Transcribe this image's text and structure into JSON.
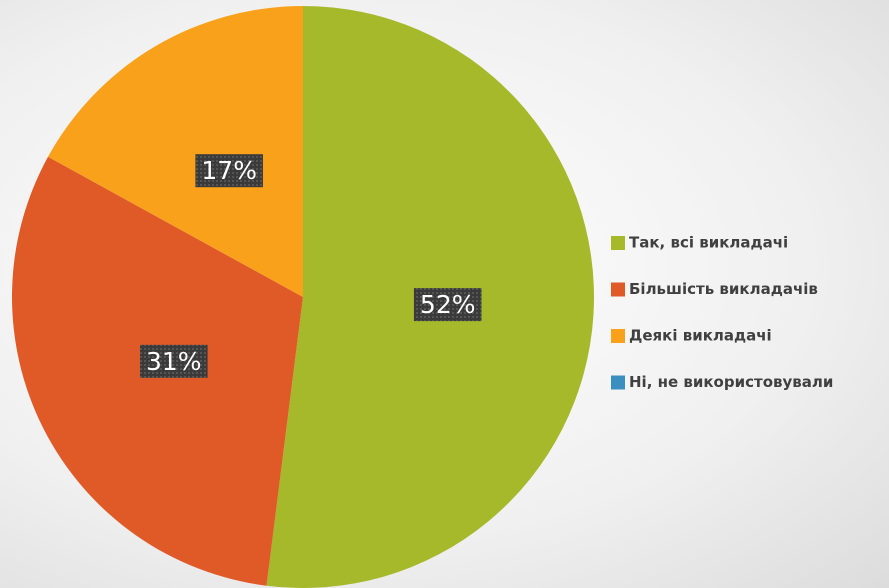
{
  "chart_data": {
    "type": "pie",
    "categories": [
      "Так,  всі  викладачі",
      "Більшість  викладачів",
      "Деякі  викладачі",
      "Ні,  не  використовували"
    ],
    "values": [
      52,
      31,
      17,
      0
    ],
    "value_labels": [
      "52%",
      "31%",
      "17%",
      null
    ],
    "colors": [
      "#a5b92a",
      "#e05a28",
      "#f9a11b",
      "#3b8fc0"
    ],
    "legend": "right"
  }
}
